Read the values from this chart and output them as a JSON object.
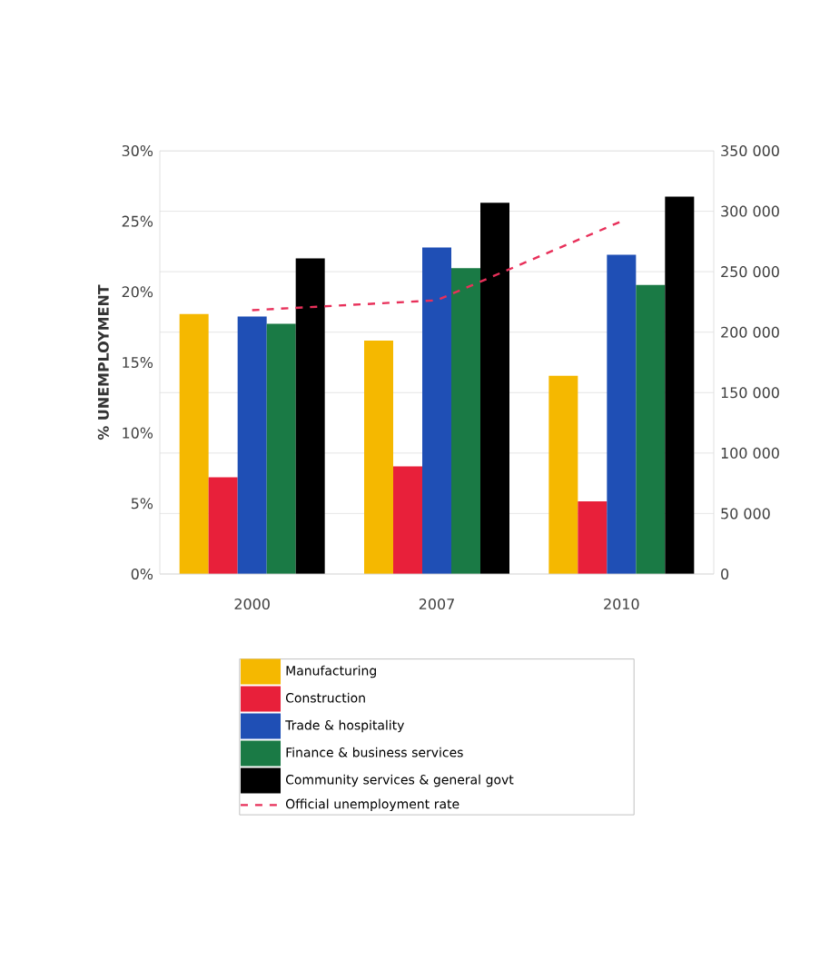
{
  "chart_data": {
    "type": "bar",
    "ylabel": "% UNEMPLOYMENT",
    "categories": [
      "2000",
      "2007",
      "2010"
    ],
    "series": [
      {
        "name": "Manufacturing",
        "color": "#f5b800",
        "axis": "y2",
        "values": [
          215000,
          193000,
          164000
        ]
      },
      {
        "name": "Construction",
        "color": "#e8203a",
        "axis": "y2",
        "values": [
          80000,
          89000,
          60000
        ]
      },
      {
        "name": "Trade & hospitality",
        "color": "#1f4fb5",
        "axis": "y2",
        "values": [
          213000,
          270000,
          264000
        ]
      },
      {
        "name": "Finance & business services",
        "color": "#1a7a45",
        "axis": "y2",
        "values": [
          207000,
          253000,
          239000
        ]
      },
      {
        "name": "Community services & general govt",
        "color": "#000000",
        "axis": "y2",
        "values": [
          261000,
          307000,
          312000
        ]
      },
      {
        "name": "Official unemployment rate",
        "type": "line",
        "color": "#e8305a",
        "line_style": "dashed",
        "values": [
          18.7,
          19.4,
          25.0
        ]
      }
    ],
    "ylim": [
      0,
      30
    ],
    "yticks": [
      {
        "value": 0,
        "label": "0%"
      },
      {
        "value": 5,
        "label": "5%"
      },
      {
        "value": 10,
        "label": "10%"
      },
      {
        "value": 15,
        "label": "15%"
      },
      {
        "value": 20,
        "label": "20%"
      },
      {
        "value": 25,
        "label": "25%"
      },
      {
        "value": 30,
        "label": "30%"
      }
    ],
    "y2lim": [
      0,
      350000
    ],
    "y2ticks": [
      {
        "value": 0,
        "label": "0"
      },
      {
        "value": 50000,
        "label": "50 000"
      },
      {
        "value": 100000,
        "label": "100 000"
      },
      {
        "value": 150000,
        "label": "150 000"
      },
      {
        "value": 200000,
        "label": "200 000"
      },
      {
        "value": 250000,
        "label": "250 000"
      },
      {
        "value": 300000,
        "label": "300 000"
      },
      {
        "value": 350000,
        "label": "350 000"
      }
    ],
    "grid": "y",
    "legend": "bottom"
  }
}
